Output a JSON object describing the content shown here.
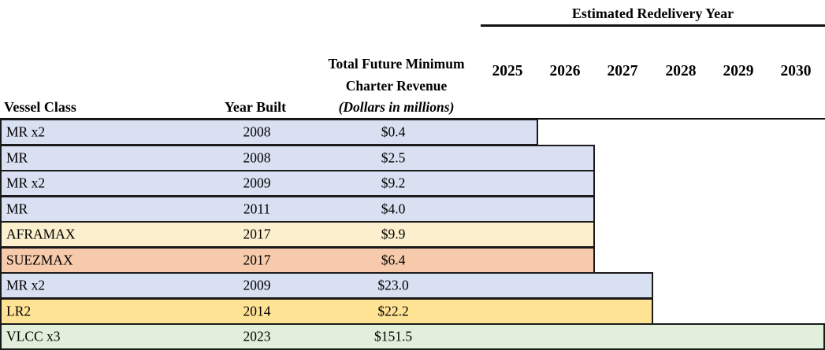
{
  "header": {
    "group_title": "Estimated Redelivery Year",
    "years": [
      "2025",
      "2026",
      "2027",
      "2028",
      "2029",
      "2030"
    ],
    "columns": {
      "vessel_class": "Vessel Class",
      "year_built": "Year Built",
      "revenue_line1": "Total Future Minimum",
      "revenue_line2": "Charter Revenue",
      "revenue_line3": "(Dollars in millions)"
    }
  },
  "rows": [
    {
      "vessel_class": "MR x2",
      "year_built": "2008",
      "revenue": "$0.4",
      "redelivery_end_year": "2025",
      "bar_color": "#D9E0F2"
    },
    {
      "vessel_class": "MR",
      "year_built": "2008",
      "revenue": "$2.5",
      "redelivery_end_year": "2026",
      "bar_color": "#D9E0F2"
    },
    {
      "vessel_class": "MR x2",
      "year_built": "2009",
      "revenue": "$9.2",
      "redelivery_end_year": "2026",
      "bar_color": "#D9E0F2"
    },
    {
      "vessel_class": "MR",
      "year_built": "2011",
      "revenue": "$4.0",
      "redelivery_end_year": "2026",
      "bar_color": "#D9E0F2"
    },
    {
      "vessel_class": "AFRAMAX",
      "year_built": "2017",
      "revenue": "$9.9",
      "redelivery_end_year": "2026",
      "bar_color": "#FCEFCE"
    },
    {
      "vessel_class": "SUEZMAX",
      "year_built": "2017",
      "revenue": "$6.4",
      "redelivery_end_year": "2026",
      "bar_color": "#F6CAAA"
    },
    {
      "vessel_class": "MR x2",
      "year_built": "2009",
      "revenue": "$23.0",
      "redelivery_end_year": "2027",
      "bar_color": "#D9E0F2"
    },
    {
      "vessel_class": "LR2",
      "year_built": "2014",
      "revenue": "$22.2",
      "redelivery_end_year": "2027",
      "bar_color": "#FFE394"
    },
    {
      "vessel_class": "VLCC x3",
      "year_built": "2023",
      "revenue": "$151.5",
      "redelivery_end_year": "2030",
      "bar_color": "#E2EFDA"
    }
  ],
  "colors": {
    "bar_border": "#1a1a1a",
    "rule": "#111111",
    "lavender": "#D9E0F2",
    "cream": "#FCEFCE",
    "salmon": "#F6CAAA",
    "gold": "#FFE394",
    "green": "#E2EFDA"
  },
  "chart_data": {
    "type": "bar",
    "subtype": "gantt-table",
    "title": "Estimated Redelivery Year",
    "x_categories": [
      "2025",
      "2026",
      "2027",
      "2028",
      "2029",
      "2030"
    ],
    "columns": [
      "Vessel Class",
      "Year Built",
      "Total Future Minimum Charter Revenue (Dollars in millions)"
    ],
    "rows": [
      {
        "vessel_class": "MR x2",
        "year_built": 2008,
        "revenue_millions": 0.4,
        "bar_end_year": 2025
      },
      {
        "vessel_class": "MR",
        "year_built": 2008,
        "revenue_millions": 2.5,
        "bar_end_year": 2026
      },
      {
        "vessel_class": "MR x2",
        "year_built": 2009,
        "revenue_millions": 9.2,
        "bar_end_year": 2026
      },
      {
        "vessel_class": "MR",
        "year_built": 2011,
        "revenue_millions": 4.0,
        "bar_end_year": 2026
      },
      {
        "vessel_class": "AFRAMAX",
        "year_built": 2017,
        "revenue_millions": 9.9,
        "bar_end_year": 2026
      },
      {
        "vessel_class": "SUEZMAX",
        "year_built": 2017,
        "revenue_millions": 6.4,
        "bar_end_year": 2026
      },
      {
        "vessel_class": "MR x2",
        "year_built": 2009,
        "revenue_millions": 23.0,
        "bar_end_year": 2027
      },
      {
        "vessel_class": "LR2",
        "year_built": 2014,
        "revenue_millions": 22.2,
        "bar_end_year": 2027
      },
      {
        "vessel_class": "VLCC x3",
        "year_built": 2023,
        "revenue_millions": 151.5,
        "bar_end_year": 2030
      }
    ],
    "layout": {
      "grid": false,
      "legend": "none",
      "bars_start_at_left_edge": true,
      "bars_end_at_right_edge_of_end_year_column": true
    }
  }
}
